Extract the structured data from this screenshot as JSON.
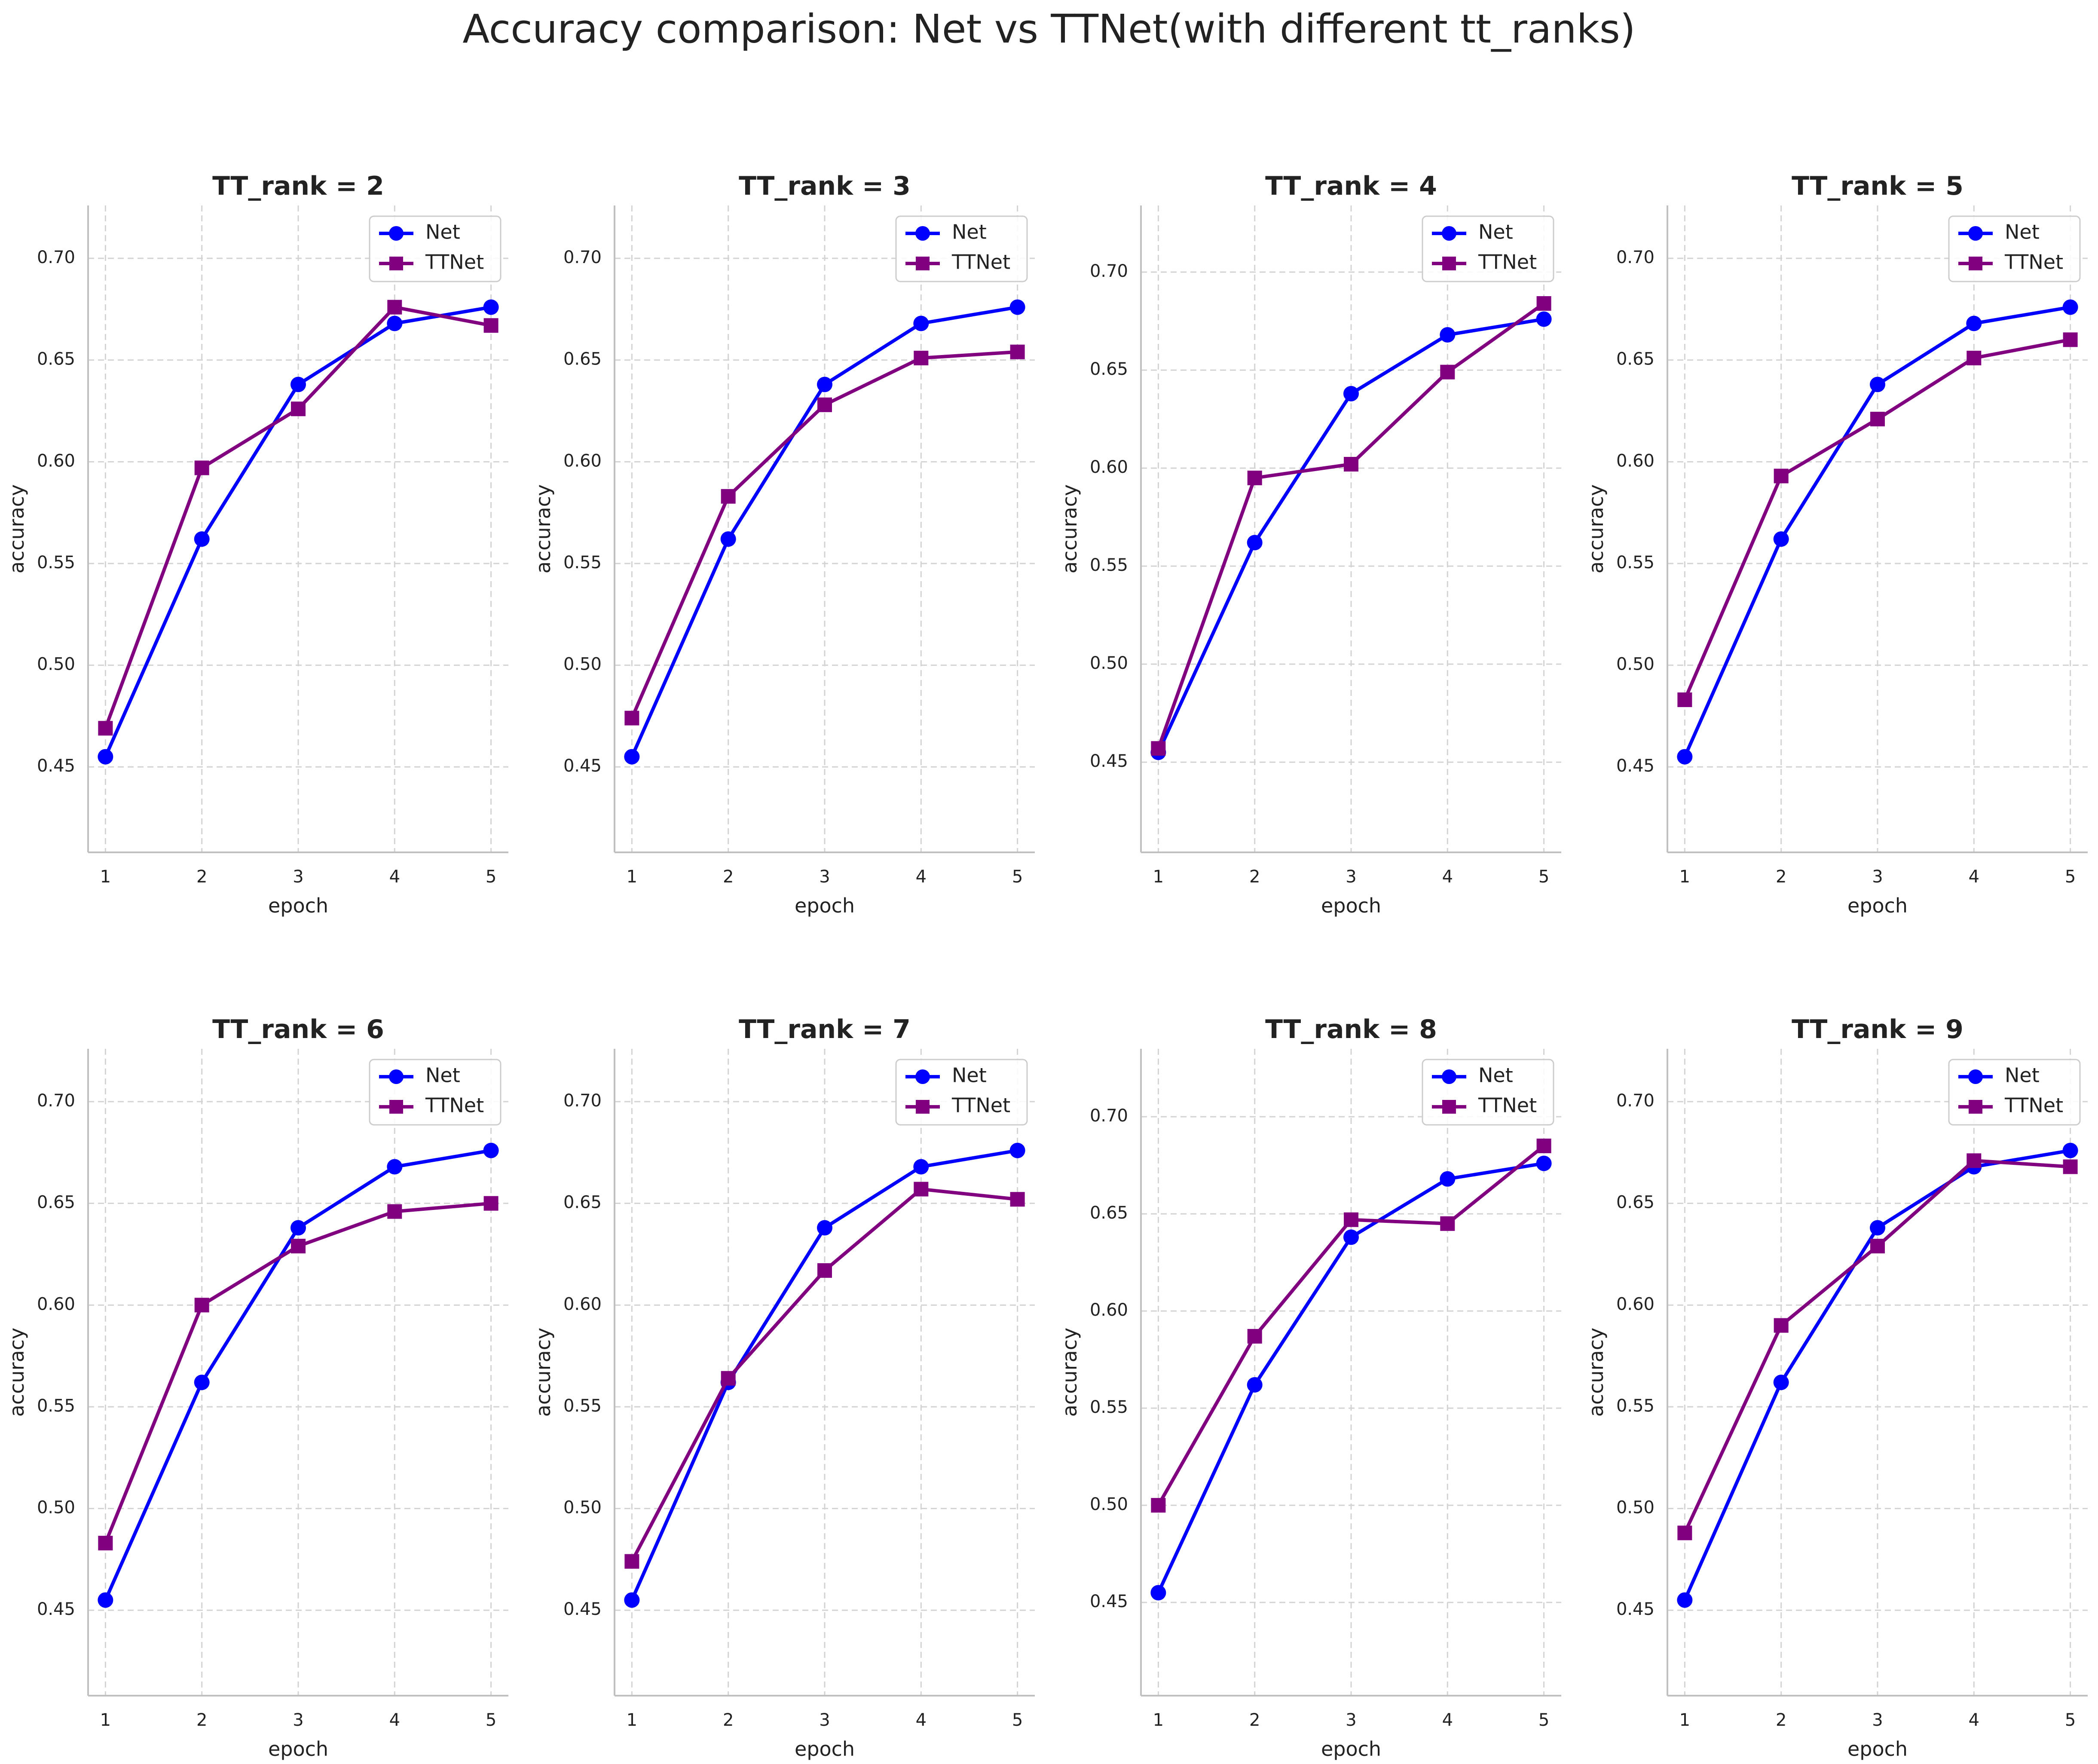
{
  "figure": {
    "title": "Accuracy comparison: Net vs TTNet(with different tt_ranks)"
  },
  "colors": {
    "net": "#0000ff",
    "ttnet": "#800080",
    "grid": "#d3d3d3",
    "axis": "#c0c0c0",
    "text": "#222222"
  },
  "chart_data": [
    {
      "type": "line",
      "title": "TT_rank = 2",
      "xlabel": "epoch",
      "ylabel": "accuracy",
      "x": [
        1,
        2,
        3,
        4,
        5
      ],
      "xlim": [
        0.82,
        5.18
      ],
      "ylim": [
        0.408,
        0.726
      ],
      "yticks": [
        0.45,
        0.5,
        0.55,
        0.6,
        0.65,
        0.7
      ],
      "grid": true,
      "legend_position": "top-right",
      "series": [
        {
          "name": "Net",
          "marker": "circle",
          "values": [
            0.455,
            0.562,
            0.638,
            0.668,
            0.676
          ]
        },
        {
          "name": "TTNet",
          "marker": "square",
          "values": [
            0.469,
            0.597,
            0.626,
            0.676,
            0.667
          ]
        }
      ]
    },
    {
      "type": "line",
      "title": "TT_rank = 3",
      "xlabel": "epoch",
      "ylabel": "accuracy",
      "x": [
        1,
        2,
        3,
        4,
        5
      ],
      "xlim": [
        0.82,
        5.18
      ],
      "ylim": [
        0.408,
        0.726
      ],
      "yticks": [
        0.45,
        0.5,
        0.55,
        0.6,
        0.65,
        0.7
      ],
      "grid": true,
      "legend_position": "top-right",
      "series": [
        {
          "name": "Net",
          "marker": "circle",
          "values": [
            0.455,
            0.562,
            0.638,
            0.668,
            0.676
          ]
        },
        {
          "name": "TTNet",
          "marker": "square",
          "values": [
            0.474,
            0.583,
            0.628,
            0.651,
            0.654
          ]
        }
      ]
    },
    {
      "type": "line",
      "title": "TT_rank = 4",
      "xlabel": "epoch",
      "ylabel": "accuracy",
      "x": [
        1,
        2,
        3,
        4,
        5
      ],
      "xlim": [
        0.82,
        5.18
      ],
      "ylim": [
        0.404,
        0.734
      ],
      "yticks": [
        0.45,
        0.5,
        0.55,
        0.6,
        0.65,
        0.7
      ],
      "grid": true,
      "legend_position": "top-right",
      "series": [
        {
          "name": "Net",
          "marker": "circle",
          "values": [
            0.455,
            0.562,
            0.638,
            0.668,
            0.676
          ]
        },
        {
          "name": "TTNet",
          "marker": "square",
          "values": [
            0.457,
            0.595,
            0.602,
            0.649,
            0.684
          ]
        }
      ]
    },
    {
      "type": "line",
      "title": "TT_rank = 5",
      "xlabel": "epoch",
      "ylabel": "accuracy",
      "x": [
        1,
        2,
        3,
        4,
        5
      ],
      "xlim": [
        0.82,
        5.18
      ],
      "ylim": [
        0.408,
        0.726
      ],
      "yticks": [
        0.45,
        0.5,
        0.55,
        0.6,
        0.65,
        0.7
      ],
      "grid": true,
      "legend_position": "top-right",
      "series": [
        {
          "name": "Net",
          "marker": "circle",
          "values": [
            0.455,
            0.562,
            0.638,
            0.668,
            0.676
          ]
        },
        {
          "name": "TTNet",
          "marker": "square",
          "values": [
            0.483,
            0.593,
            0.621,
            0.651,
            0.66
          ]
        }
      ]
    },
    {
      "type": "line",
      "title": "TT_rank = 6",
      "xlabel": "epoch",
      "ylabel": "accuracy",
      "x": [
        1,
        2,
        3,
        4,
        5
      ],
      "xlim": [
        0.82,
        5.18
      ],
      "ylim": [
        0.408,
        0.726
      ],
      "yticks": [
        0.45,
        0.5,
        0.55,
        0.6,
        0.65,
        0.7
      ],
      "grid": true,
      "legend_position": "top-right",
      "series": [
        {
          "name": "Net",
          "marker": "circle",
          "values": [
            0.455,
            0.562,
            0.638,
            0.668,
            0.676
          ]
        },
        {
          "name": "TTNet",
          "marker": "square",
          "values": [
            0.483,
            0.6,
            0.629,
            0.646,
            0.65
          ]
        }
      ]
    },
    {
      "type": "line",
      "title": "TT_rank = 7",
      "xlabel": "epoch",
      "ylabel": "accuracy",
      "x": [
        1,
        2,
        3,
        4,
        5
      ],
      "xlim": [
        0.82,
        5.18
      ],
      "ylim": [
        0.408,
        0.726
      ],
      "yticks": [
        0.45,
        0.5,
        0.55,
        0.6,
        0.65,
        0.7
      ],
      "grid": true,
      "legend_position": "top-right",
      "series": [
        {
          "name": "Net",
          "marker": "circle",
          "values": [
            0.455,
            0.562,
            0.638,
            0.668,
            0.676
          ]
        },
        {
          "name": "TTNet",
          "marker": "square",
          "values": [
            0.474,
            0.564,
            0.617,
            0.657,
            0.652
          ]
        }
      ]
    },
    {
      "type": "line",
      "title": "TT_rank = 8",
      "xlabel": "epoch",
      "ylabel": "accuracy",
      "x": [
        1,
        2,
        3,
        4,
        5
      ],
      "xlim": [
        0.82,
        5.18
      ],
      "ylim": [
        0.402,
        0.735
      ],
      "yticks": [
        0.45,
        0.5,
        0.55,
        0.6,
        0.65,
        0.7
      ],
      "grid": true,
      "legend_position": "top-right",
      "series": [
        {
          "name": "Net",
          "marker": "circle",
          "values": [
            0.455,
            0.562,
            0.638,
            0.668,
            0.676
          ]
        },
        {
          "name": "TTNet",
          "marker": "square",
          "values": [
            0.5,
            0.587,
            0.647,
            0.645,
            0.685
          ]
        }
      ]
    },
    {
      "type": "line",
      "title": "TT_rank = 9",
      "xlabel": "epoch",
      "ylabel": "accuracy",
      "x": [
        1,
        2,
        3,
        4,
        5
      ],
      "xlim": [
        0.82,
        5.18
      ],
      "ylim": [
        0.408,
        0.726
      ],
      "yticks": [
        0.45,
        0.5,
        0.55,
        0.6,
        0.65,
        0.7
      ],
      "grid": true,
      "legend_position": "top-right",
      "series": [
        {
          "name": "Net",
          "marker": "circle",
          "values": [
            0.455,
            0.562,
            0.638,
            0.668,
            0.676
          ]
        },
        {
          "name": "TTNet",
          "marker": "square",
          "values": [
            0.488,
            0.59,
            0.629,
            0.671,
            0.668
          ]
        }
      ]
    }
  ]
}
